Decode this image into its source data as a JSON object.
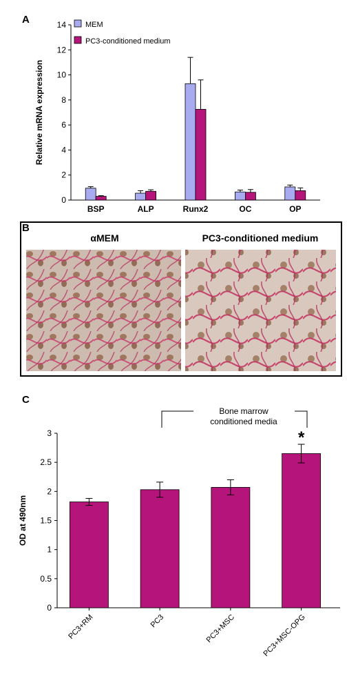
{
  "colors": {
    "mem": "#a9abf0",
    "pc3": "#b5157a",
    "photo_bg": "#c9b4a6",
    "stain": "#c83a6c"
  },
  "panel_a": {
    "letter": "A",
    "legend": [
      "MEM",
      "PC3-conditioned medium"
    ]
  },
  "panel_b": {
    "letter": "B",
    "left_title": "αMEM",
    "right_title": "PC3-conditioned medium"
  },
  "panel_c": {
    "letter": "C",
    "annotation_line1": "Bone marrow",
    "annotation_line2": "conditioned media",
    "significance": "*"
  },
  "chart_data": [
    {
      "type": "bar",
      "panel": "A",
      "categories": [
        "BSP",
        "ALP",
        "Runx2",
        "OC",
        "OP"
      ],
      "series": [
        {
          "name": "MEM",
          "values": [
            0.95,
            0.55,
            9.3,
            0.65,
            1.05
          ],
          "errors": [
            0.12,
            0.2,
            2.1,
            0.15,
            0.15
          ]
        },
        {
          "name": "PC3-conditioned medium",
          "values": [
            0.3,
            0.7,
            7.25,
            0.62,
            0.75
          ],
          "errors": [
            0.05,
            0.12,
            2.35,
            0.22,
            0.22
          ]
        }
      ],
      "ylabel": "Relative mRNA expression",
      "xlabel": "",
      "ylim": [
        0,
        14
      ],
      "yticks": [
        0,
        2,
        4,
        6,
        8,
        10,
        12,
        14
      ],
      "grid": false,
      "legend_position": "top-left"
    },
    {
      "type": "bar",
      "panel": "C",
      "categories": [
        "PC3+RM",
        "PC3",
        "PC3+MSC",
        "PC3+MSC-OPG"
      ],
      "series": [
        {
          "name": "",
          "values": [
            1.82,
            2.03,
            2.07,
            2.65
          ],
          "errors": [
            0.06,
            0.13,
            0.13,
            0.16
          ]
        }
      ],
      "ylabel": "OD at 490nm",
      "xlabel": "",
      "ylim": [
        0,
        3
      ],
      "yticks": [
        0,
        0.5,
        1,
        1.5,
        2,
        2.5,
        3
      ],
      "grid": false,
      "legend_position": "none"
    }
  ]
}
